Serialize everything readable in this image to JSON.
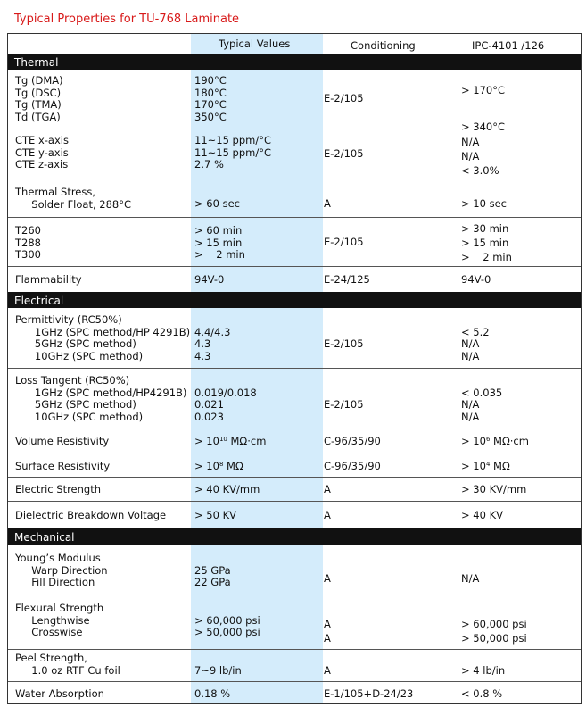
{
  "title": "Typical Properties for TU-768 Laminate",
  "header": {
    "typical": "Typical Values",
    "conditioning": "Conditioning",
    "ipc": "IPC-4101 /126"
  },
  "sections": {
    "thermal": "Thermal",
    "electrical": "Electrical",
    "mechanical": "Mechanical"
  },
  "rows": {
    "tg": {
      "prop": "Tg (DMA)\nTg (DSC)\nTg (TMA)\nTd (TGA)",
      "val": "190°C\n180°C\n170°C\n350°C",
      "cond": "E-2/105",
      "ipc": "> 170°C\n\n\n> 340°C"
    },
    "cte": {
      "prop": "CTE x-axis\nCTE y-axis\nCTE z-axis",
      "val": "11~15 ppm/°C\n11~15 ppm/°C\n2.7 %",
      "cond": "E-2/105",
      "ipc": "N/A\nN/A\n< 3.0%"
    },
    "stress": {
      "prop": "Thermal Stress,\n     Solder Float, 288°C",
      "val": "> 60 sec",
      "cond": "A",
      "ipc": "> 10 sec"
    },
    "tt": {
      "prop": "T260\nT288\nT300",
      "val": "> 60 min\n> 15 min\n>    2 min",
      "cond": "E-2/105",
      "ipc": "> 30 min\n> 15 min\n>    2 min"
    },
    "flam": {
      "prop": "Flammability",
      "val": "94V-0",
      "cond": "E-24/125",
      "ipc": "94V-0"
    },
    "perm": {
      "prop": "Permittivity (RC50%)\n      1GHz (SPC method/HP 4291B)\n      5GHz (SPC method)\n      10GHz (SPC method)",
      "val": "\n4.4/4.3\n4.3\n4.3",
      "cond": "E-2/105",
      "ipc": "\n< 5.2\nN/A\nN/A"
    },
    "loss": {
      "prop": "Loss Tangent (RC50%)\n      1GHz (SPC method/HP4291B)\n      5GHz (SPC method)\n      10GHz (SPC method)",
      "val": "\n0.019/0.018\n0.021\n0.023",
      "cond": "E-2/105",
      "ipc": "\n< 0.035\nN/A\nN/A"
    },
    "vol": {
      "prop": "Volume Resistivity",
      "val_pre": "> 10",
      "val_sup": "10",
      "val_post": " MΩ‧cm",
      "cond": "C-96/35/90",
      "ipc_pre": "> 10",
      "ipc_sup": "6",
      "ipc_post": " MΩ‧cm"
    },
    "surf": {
      "prop": "Surface Resistivity",
      "val_pre": "> 10",
      "val_sup": "8",
      "val_post": " MΩ",
      "cond": "C-96/35/90",
      "ipc_pre": "> 10",
      "ipc_sup": "4",
      "ipc_post": " MΩ"
    },
    "elec": {
      "prop": "Electric Strength",
      "val": "> 40 KV/mm",
      "cond": "A",
      "ipc": "> 30 KV/mm"
    },
    "diel": {
      "prop": "Dielectric Breakdown Voltage",
      "val": "> 50 KV",
      "cond": "A",
      "ipc": "> 40 KV"
    },
    "young": {
      "prop": "Young’s Modulus\n     Warp Direction\n     Fill Direction",
      "val": "\n25 GPa\n22 GPa",
      "cond": "A",
      "ipc": "N/A"
    },
    "flex": {
      "prop": "Flexural Strength\n     Lengthwise\n     Crosswise",
      "val": "\n> 60,000 psi\n> 50,000 psi",
      "cond": "A\nA",
      "ipc": "> 60,000 psi\n> 50,000 psi"
    },
    "peel": {
      "prop": "Peel Strength,\n     1.0 oz RTF Cu foil",
      "val": "7~9 lb/in",
      "cond": "A",
      "ipc": "> 4 lb/in"
    },
    "water": {
      "prop": "Water Absorption",
      "val": "0.18 %",
      "cond": "E-1/105+D-24/23",
      "ipc": "< 0.8 %"
    }
  }
}
